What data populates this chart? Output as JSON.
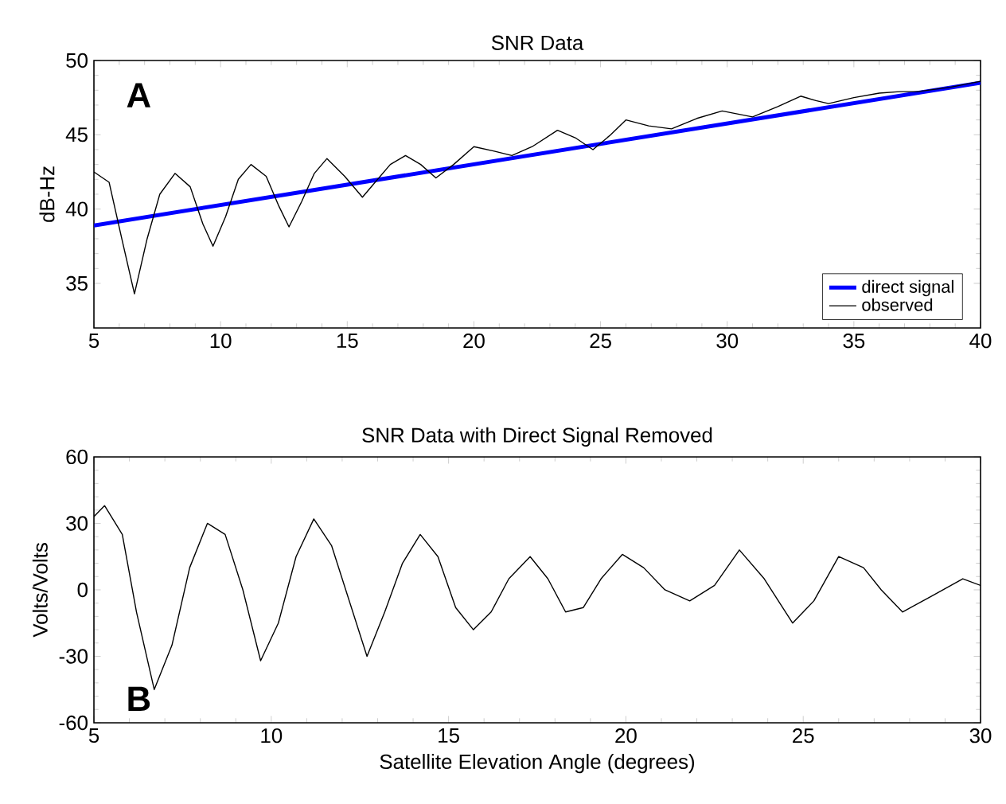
{
  "chart_data": [
    {
      "type": "line",
      "title": "SNR Data",
      "ylabel": "dB-Hz",
      "xlim": [
        5,
        40
      ],
      "ylim": [
        32,
        50
      ],
      "xticks": [
        5,
        10,
        15,
        20,
        25,
        30,
        35,
        40
      ],
      "yticks": [
        35,
        40,
        45,
        50
      ],
      "legend": "bottom right",
      "annotations": [
        "A"
      ],
      "series": [
        {
          "name": "direct signal",
          "color": "#0000ff",
          "x": [
            5,
            40
          ],
          "values": [
            38.9,
            48.5
          ]
        },
        {
          "name": "observed",
          "color": "#000000",
          "x": [
            5,
            5.6,
            6.1,
            6.6,
            7.1,
            7.6,
            8.2,
            8.8,
            9.3,
            9.7,
            10.2,
            10.7,
            11.2,
            11.8,
            12.3,
            12.7,
            13.2,
            13.7,
            14.2,
            14.9,
            15.6,
            16.1,
            16.7,
            17.3,
            17.9,
            18.5,
            19.2,
            20,
            20.8,
            21.5,
            22.3,
            23.3,
            24.0,
            24.7,
            25.4,
            26,
            26.9,
            27.8,
            28.8,
            29.8,
            30.4,
            31,
            32,
            32.9,
            33.5,
            34,
            35,
            36,
            36.8,
            37.5,
            38.8,
            40
          ],
          "values": [
            42.5,
            41.8,
            38.0,
            34.3,
            38.0,
            41.0,
            42.4,
            41.5,
            39.0,
            37.5,
            39.5,
            42.0,
            43.0,
            42.2,
            40.2,
            38.8,
            40.5,
            42.4,
            43.4,
            42.2,
            40.8,
            41.8,
            43.0,
            43.6,
            43.0,
            42.1,
            43.0,
            44.2,
            43.9,
            43.6,
            44.2,
            45.3,
            44.8,
            44.0,
            45.0,
            46.0,
            45.6,
            45.4,
            46.1,
            46.6,
            46.4,
            46.2,
            46.9,
            47.6,
            47.3,
            47.1,
            47.5,
            47.8,
            47.9,
            47.9,
            48.2,
            48.6
          ]
        }
      ]
    },
    {
      "type": "line",
      "title": "SNR Data with Direct Signal Removed",
      "xlabel": "Satellite Elevation Angle (degrees)",
      "ylabel": "Volts/Volts",
      "xlim": [
        5,
        30
      ],
      "ylim": [
        -60,
        60
      ],
      "xticks": [
        5,
        10,
        15,
        20,
        25,
        30
      ],
      "yticks": [
        -60,
        -30,
        0,
        30,
        60
      ],
      "annotations": [
        "B"
      ],
      "series": [
        {
          "color": "#000000",
          "x": [
            5,
            5.3,
            5.8,
            6.2,
            6.7,
            7.2,
            7.7,
            8.2,
            8.7,
            9.2,
            9.7,
            10.2,
            10.7,
            11.2,
            11.7,
            12.2,
            12.7,
            13.2,
            13.7,
            14.2,
            14.7,
            15.2,
            15.7,
            16.2,
            16.7,
            17.3,
            17.8,
            18.3,
            18.8,
            19.3,
            19.9,
            20.5,
            21.1,
            21.8,
            22.5,
            23.2,
            23.9,
            24.7,
            25.3,
            26.0,
            26.7,
            27.2,
            27.8,
            28.6,
            29.5,
            30
          ],
          "values": [
            33,
            38,
            25,
            -10,
            -45,
            -25,
            10,
            30,
            25,
            0,
            -32,
            -15,
            15,
            32,
            20,
            -5,
            -30,
            -10,
            12,
            25,
            15,
            -8,
            -18,
            -10,
            5,
            15,
            5,
            -10,
            -8,
            5,
            16,
            10,
            0,
            -5,
            2,
            18,
            5,
            -15,
            -5,
            15,
            10,
            0,
            -10,
            -3,
            5,
            2
          ]
        }
      ]
    }
  ]
}
